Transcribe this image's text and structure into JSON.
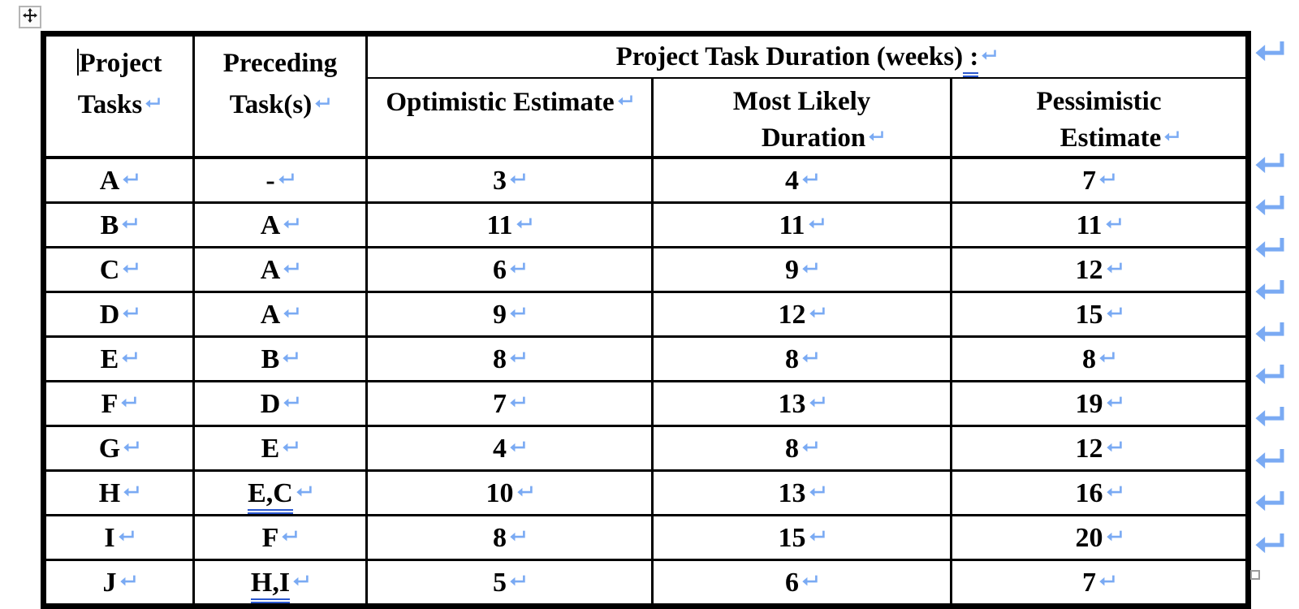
{
  "document": {
    "return_mark": "↵",
    "colors": {
      "format_mark_blue": "#7aaaf3",
      "grammar_underline_blue": "#2b58ce",
      "table_border": "#000000",
      "handle_border": "#b5b5b5"
    }
  },
  "table": {
    "columns": {
      "project_tasks": {
        "line1": "Project",
        "line2": "Tasks"
      },
      "preceding": {
        "line1": "Preceding",
        "line2": "Task(s)"
      },
      "duration_group": {
        "title": "Project Task Duration (weeks)",
        "suffix": " :"
      },
      "optimistic": {
        "line1": "Optimistic Estimate"
      },
      "most_likely": {
        "line1": "Most Likely",
        "line2": "Duration"
      },
      "pessimistic": {
        "line1": "Pessimistic",
        "line2": "Estimate"
      }
    },
    "rows": [
      {
        "task": "A",
        "preceding": "-",
        "preceding_underline": false,
        "optimistic": "3",
        "most_likely": "4",
        "pessimistic": "7"
      },
      {
        "task": "B",
        "preceding": "A",
        "preceding_underline": false,
        "optimistic": "11",
        "most_likely": "11",
        "pessimistic": "11"
      },
      {
        "task": "C",
        "preceding": "A",
        "preceding_underline": false,
        "optimistic": "6",
        "most_likely": "9",
        "pessimistic": "12"
      },
      {
        "task": "D",
        "preceding": "A",
        "preceding_underline": false,
        "optimistic": "9",
        "most_likely": "12",
        "pessimistic": "15"
      },
      {
        "task": "E",
        "preceding": "B",
        "preceding_underline": false,
        "optimistic": "8",
        "most_likely": "8",
        "pessimistic": "8"
      },
      {
        "task": "F",
        "preceding": "D",
        "preceding_underline": false,
        "optimistic": "7",
        "most_likely": "13",
        "pessimistic": "19"
      },
      {
        "task": "G",
        "preceding": "E",
        "preceding_underline": false,
        "optimistic": "4",
        "most_likely": "8",
        "pessimistic": "12"
      },
      {
        "task": "H",
        "preceding": "E,C",
        "preceding_underline": true,
        "optimistic": "10",
        "most_likely": "13",
        "pessimistic": "16"
      },
      {
        "task": "I",
        "preceding": "F",
        "preceding_underline": false,
        "optimistic": "8",
        "most_likely": "15",
        "pessimistic": "20"
      },
      {
        "task": "J",
        "preceding": "H,I",
        "preceding_underline": true,
        "optimistic": "5",
        "most_likely": "6",
        "pessimistic": "7"
      }
    ]
  }
}
